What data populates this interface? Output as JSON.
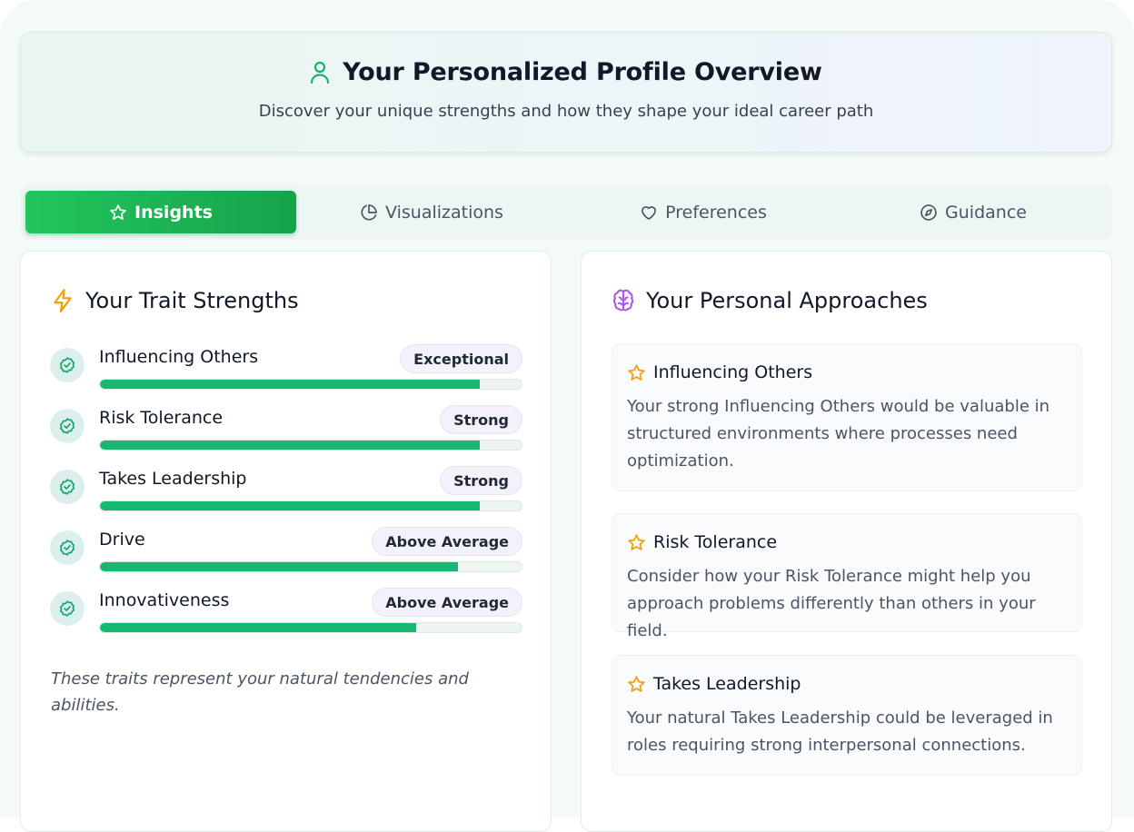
{
  "header": {
    "title": "Your Personalized Profile Overview",
    "subtitle": "Discover your unique strengths and how they shape your ideal career path",
    "icon": "user-icon"
  },
  "tabs": [
    {
      "label": "Insights",
      "icon": "star-icon",
      "active": true
    },
    {
      "label": "Visualizations",
      "icon": "pie-chart-icon",
      "active": false
    },
    {
      "label": "Preferences",
      "icon": "heart-icon",
      "active": false
    },
    {
      "label": "Guidance",
      "icon": "compass-icon",
      "active": false
    }
  ],
  "traits": {
    "title": "Your Trait Strengths",
    "icon": "lightning-icon",
    "items": [
      {
        "name": "Influencing Others",
        "level": "Exceptional",
        "score": 0.9
      },
      {
        "name": "Risk Tolerance",
        "level": "Strong",
        "score": 0.9
      },
      {
        "name": "Takes Leadership",
        "level": "Strong",
        "score": 0.9
      },
      {
        "name": "Drive",
        "level": "Above Average",
        "score": 0.85
      },
      {
        "name": "Innovativeness",
        "level": "Above Average",
        "score": 0.75
      }
    ],
    "footnote": "These traits represent your natural tendencies and abilities."
  },
  "approaches": {
    "title": "Your Personal Approaches",
    "icon": "brain-icon",
    "items": [
      {
        "title": "Influencing Others",
        "text": "Your strong Influencing Others would be valuable in structured environments where processes need optimization."
      },
      {
        "title": "Risk Tolerance",
        "text": "Consider how your Risk Tolerance might help you approach problems differently than others in your field."
      },
      {
        "title": "Takes Leadership",
        "text": "Your natural Takes Leadership could be leveraged in roles requiring strong interpersonal connections."
      }
    ]
  },
  "colors": {
    "accent": "#16a34a",
    "bar_fill": "#17b871",
    "icon_amber": "#f59e0b",
    "icon_purple": "#a855f7"
  }
}
